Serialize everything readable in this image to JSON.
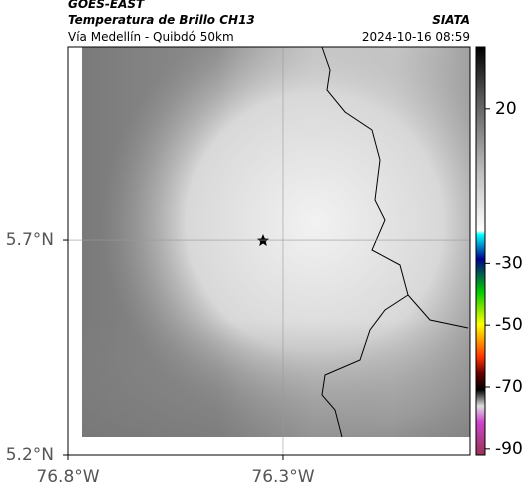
{
  "header": {
    "satellite": "GOES-EAST",
    "product": "Temperatura de Brillo CH13",
    "route": "Vía Medellín - Quibdó 50km",
    "source": "SIATA",
    "timestamp": "2024-10-16 08:59"
  },
  "map": {
    "lonlim": [
      -76.8,
      -75.865
    ],
    "latlim": [
      5.2,
      6.149
    ],
    "lonticks": [
      {
        "value": -76.8,
        "label": "76.8°W"
      },
      {
        "value": -76.3,
        "label": "76.3°W"
      }
    ],
    "latticks": [
      {
        "value": 5.7,
        "label": "5.7°N"
      },
      {
        "value": 5.2,
        "label": "5.2°N"
      }
    ]
  },
  "colorbar": {
    "lim": [
      -92,
      40
    ],
    "ticks": [
      20,
      -30,
      -50,
      -70,
      -90
    ]
  }
}
